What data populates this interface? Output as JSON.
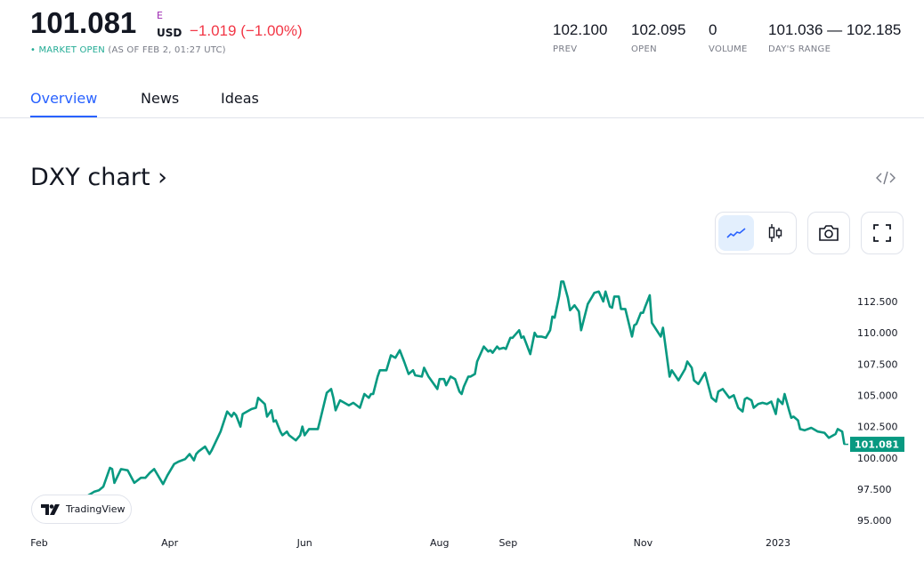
{
  "quote": {
    "price": "101.081",
    "exchange_flag": "E",
    "currency": "USD",
    "change": "−1.019 (−1.00%)",
    "market_status": "MARKET OPEN",
    "as_of": "(AS OF FEB 2, 01:27 UTC)",
    "status_color": "#22ab94",
    "change_color": "#f23645"
  },
  "stats": [
    {
      "value": "102.100",
      "label": "PREV"
    },
    {
      "value": "102.095",
      "label": "OPEN"
    },
    {
      "value": "0",
      "label": "VOLUME"
    },
    {
      "value": "101.036 — 102.185",
      "label": "DAY'S RANGE"
    }
  ],
  "tabs": [
    {
      "label": "Overview",
      "active": true
    },
    {
      "label": "News",
      "active": false
    },
    {
      "label": "Ideas",
      "active": false
    }
  ],
  "chart_section": {
    "title": "DXY chart ›",
    "embed_icon": "code-icon",
    "buttons": [
      {
        "name": "line-chart-icon",
        "active": true
      },
      {
        "name": "candlestick-icon",
        "active": false
      },
      {
        "name": "camera-icon",
        "active": false
      },
      {
        "name": "fullscreen-icon",
        "active": false
      }
    ],
    "badge": "TradingView"
  },
  "chart_data": {
    "type": "line",
    "line_color": "#089981",
    "grid": false,
    "ylim": [
      95,
      114.5
    ],
    "y_ticks": [
      "112.500",
      "110.000",
      "107.500",
      "105.000",
      "102.500",
      "100.000",
      "97.500",
      "95.000"
    ],
    "x_ticks": [
      {
        "label": "Feb",
        "date": "2022-02-01"
      },
      {
        "label": "Apr",
        "date": "2022-04-01"
      },
      {
        "label": "Jun",
        "date": "2022-06-01"
      },
      {
        "label": "Aug",
        "date": "2022-08-01"
      },
      {
        "label": "Sep",
        "date": "2022-09-01"
      },
      {
        "label": "Nov",
        "date": "2022-11-01"
      },
      {
        "label": "2023",
        "date": "2023-01-01"
      }
    ],
    "last_value_label": "101.081",
    "points": [
      [
        "2022-02-01",
        96.3
      ],
      [
        "2022-02-14",
        96.0
      ],
      [
        "2022-02-26",
        97.3
      ],
      [
        "2022-02-28",
        97.4
      ],
      [
        "2022-03-02",
        97.7
      ],
      [
        "2022-03-05",
        99.2
      ],
      [
        "2022-03-06",
        99.1
      ],
      [
        "2022-03-07",
        98.0
      ],
      [
        "2022-03-10",
        99.1
      ],
      [
        "2022-03-13",
        99.0
      ],
      [
        "2022-03-16",
        98.0
      ],
      [
        "2022-03-19",
        98.4
      ],
      [
        "2022-03-21",
        98.4
      ],
      [
        "2022-03-23",
        98.8
      ],
      [
        "2022-03-25",
        99.1
      ],
      [
        "2022-03-29",
        97.9
      ],
      [
        "2022-03-31",
        98.6
      ],
      [
        "2022-04-03",
        99.5
      ],
      [
        "2022-04-05",
        99.7
      ],
      [
        "2022-04-08",
        99.9
      ],
      [
        "2022-04-10",
        100.3
      ],
      [
        "2022-04-12",
        99.8
      ],
      [
        "2022-04-13",
        100.3
      ],
      [
        "2022-04-14",
        100.5
      ],
      [
        "2022-04-17",
        100.9
      ],
      [
        "2022-04-19",
        100.3
      ],
      [
        "2022-04-20",
        100.6
      ],
      [
        "2022-04-24",
        102.1
      ],
      [
        "2022-04-27",
        103.7
      ],
      [
        "2022-04-29",
        103.3
      ],
      [
        "2022-04-30",
        103.6
      ],
      [
        "2022-05-01",
        103.4
      ],
      [
        "2022-05-03",
        102.5
      ],
      [
        "2022-05-04",
        103.5
      ],
      [
        "2022-05-08",
        103.9
      ],
      [
        "2022-05-10",
        104.0
      ],
      [
        "2022-05-11",
        104.8
      ],
      [
        "2022-05-14",
        104.3
      ],
      [
        "2022-05-15",
        103.3
      ],
      [
        "2022-05-17",
        103.8
      ],
      [
        "2022-05-18",
        102.9
      ],
      [
        "2022-05-19",
        103.0
      ],
      [
        "2022-05-21",
        102.1
      ],
      [
        "2022-05-22",
        101.8
      ],
      [
        "2022-05-24",
        102.1
      ],
      [
        "2022-05-25",
        101.8
      ],
      [
        "2022-05-28",
        101.4
      ],
      [
        "2022-05-30",
        101.8
      ],
      [
        "2022-05-31",
        102.5
      ],
      [
        "2022-06-01",
        101.8
      ],
      [
        "2022-06-03",
        102.3
      ],
      [
        "2022-06-05",
        102.3
      ],
      [
        "2022-06-07",
        102.3
      ],
      [
        "2022-06-08",
        103.0
      ],
      [
        "2022-06-11",
        105.2
      ],
      [
        "2022-06-13",
        105.5
      ],
      [
        "2022-06-14",
        104.8
      ],
      [
        "2022-06-15",
        103.8
      ],
      [
        "2022-06-17",
        104.6
      ],
      [
        "2022-06-19",
        104.4
      ],
      [
        "2022-06-21",
        104.2
      ],
      [
        "2022-06-23",
        104.4
      ],
      [
        "2022-06-26",
        104.0
      ],
      [
        "2022-06-28",
        105.1
      ],
      [
        "2022-06-30",
        104.8
      ],
      [
        "2022-07-01",
        105.1
      ],
      [
        "2022-07-02",
        105.1
      ],
      [
        "2022-07-04",
        106.5
      ],
      [
        "2022-07-05",
        107.0
      ],
      [
        "2022-07-08",
        107.0
      ],
      [
        "2022-07-10",
        108.2
      ],
      [
        "2022-07-12",
        108.0
      ],
      [
        "2022-07-14",
        108.6
      ],
      [
        "2022-07-16",
        107.7
      ],
      [
        "2022-07-18",
        106.7
      ],
      [
        "2022-07-20",
        107.0
      ],
      [
        "2022-07-21",
        106.6
      ],
      [
        "2022-07-24",
        106.5
      ],
      [
        "2022-07-25",
        107.2
      ],
      [
        "2022-07-27",
        106.5
      ],
      [
        "2022-07-31",
        105.5
      ],
      [
        "2022-08-01",
        106.3
      ],
      [
        "2022-08-03",
        106.3
      ],
      [
        "2022-08-04",
        105.8
      ],
      [
        "2022-08-06",
        106.5
      ],
      [
        "2022-08-08",
        106.3
      ],
      [
        "2022-08-10",
        105.3
      ],
      [
        "2022-08-11",
        105.1
      ],
      [
        "2022-08-12",
        105.7
      ],
      [
        "2022-08-14",
        106.5
      ],
      [
        "2022-08-15",
        106.5
      ],
      [
        "2022-08-17",
        106.7
      ],
      [
        "2022-08-18",
        107.7
      ],
      [
        "2022-08-21",
        108.9
      ],
      [
        "2022-08-23",
        108.5
      ],
      [
        "2022-08-24",
        108.6
      ],
      [
        "2022-08-25",
        108.4
      ],
      [
        "2022-08-27",
        108.9
      ],
      [
        "2022-08-28",
        108.7
      ],
      [
        "2022-08-30",
        108.8
      ],
      [
        "2022-08-31",
        108.7
      ],
      [
        "2022-09-02",
        109.6
      ],
      [
        "2022-09-03",
        109.6
      ],
      [
        "2022-09-06",
        110.2
      ],
      [
        "2022-09-07",
        109.6
      ],
      [
        "2022-09-08",
        109.7
      ],
      [
        "2022-09-11",
        108.3
      ],
      [
        "2022-09-13",
        110.0
      ],
      [
        "2022-09-14",
        109.7
      ],
      [
        "2022-09-16",
        109.7
      ],
      [
        "2022-09-18",
        109.6
      ],
      [
        "2022-09-20",
        110.2
      ],
      [
        "2022-09-21",
        111.3
      ],
      [
        "2022-09-22",
        111.2
      ],
      [
        "2022-09-24",
        112.9
      ],
      [
        "2022-09-25",
        114.1
      ],
      [
        "2022-09-26",
        114.1
      ],
      [
        "2022-09-28",
        112.8
      ],
      [
        "2022-09-29",
        111.8
      ],
      [
        "2022-10-01",
        112.2
      ],
      [
        "2022-10-03",
        111.7
      ],
      [
        "2022-10-04",
        110.2
      ],
      [
        "2022-10-07",
        112.3
      ],
      [
        "2022-10-09",
        112.9
      ],
      [
        "2022-10-10",
        113.2
      ],
      [
        "2022-10-12",
        113.3
      ],
      [
        "2022-10-14",
        112.5
      ],
      [
        "2022-10-15",
        113.3
      ],
      [
        "2022-10-17",
        112.1
      ],
      [
        "2022-10-18",
        112.0
      ],
      [
        "2022-10-19",
        112.9
      ],
      [
        "2022-10-21",
        112.9
      ],
      [
        "2022-10-22",
        111.9
      ],
      [
        "2022-10-24",
        111.9
      ],
      [
        "2022-10-27",
        109.7
      ],
      [
        "2022-10-28",
        110.6
      ],
      [
        "2022-10-29",
        110.7
      ],
      [
        "2022-10-31",
        111.6
      ],
      [
        "2022-11-01",
        111.6
      ],
      [
        "2022-11-02",
        112.1
      ],
      [
        "2022-11-04",
        113.0
      ],
      [
        "2022-11-05",
        110.8
      ],
      [
        "2022-11-09",
        109.7
      ],
      [
        "2022-11-10",
        110.4
      ],
      [
        "2022-11-13",
        106.5
      ],
      [
        "2022-11-14",
        107.0
      ],
      [
        "2022-11-17",
        106.2
      ],
      [
        "2022-11-20",
        107.1
      ],
      [
        "2022-11-21",
        107.7
      ],
      [
        "2022-11-23",
        107.2
      ],
      [
        "2022-11-24",
        106.2
      ],
      [
        "2022-11-26",
        105.9
      ],
      [
        "2022-11-27",
        106.2
      ],
      [
        "2022-11-29",
        106.8
      ],
      [
        "2022-12-02",
        104.8
      ],
      [
        "2022-12-04",
        104.5
      ],
      [
        "2022-12-05",
        105.3
      ],
      [
        "2022-12-07",
        105.5
      ],
      [
        "2022-12-10",
        104.8
      ],
      [
        "2022-12-12",
        105.0
      ],
      [
        "2022-12-14",
        104.0
      ],
      [
        "2022-12-16",
        103.7
      ],
      [
        "2022-12-17",
        104.7
      ],
      [
        "2022-12-18",
        104.8
      ],
      [
        "2022-12-20",
        104.6
      ],
      [
        "2022-12-21",
        104.0
      ],
      [
        "2022-12-23",
        104.3
      ],
      [
        "2022-12-25",
        104.4
      ],
      [
        "2022-12-27",
        104.3
      ],
      [
        "2022-12-29",
        104.5
      ],
      [
        "2022-12-31",
        103.5
      ],
      [
        "2023-01-01",
        104.7
      ],
      [
        "2023-01-03",
        104.3
      ],
      [
        "2023-01-04",
        105.1
      ],
      [
        "2023-01-06",
        103.8
      ],
      [
        "2023-01-07",
        103.2
      ],
      [
        "2023-01-08",
        103.3
      ],
      [
        "2023-01-10",
        103.0
      ],
      [
        "2023-01-11",
        102.3
      ],
      [
        "2023-01-13",
        102.2
      ],
      [
        "2023-01-16",
        102.4
      ],
      [
        "2023-01-17",
        102.3
      ],
      [
        "2023-01-19",
        102.1
      ],
      [
        "2023-01-22",
        102.0
      ],
      [
        "2023-01-24",
        101.6
      ],
      [
        "2023-01-27",
        101.9
      ],
      [
        "2023-01-28",
        102.3
      ],
      [
        "2023-01-30",
        102.1
      ],
      [
        "2023-01-31",
        101.081
      ]
    ]
  }
}
